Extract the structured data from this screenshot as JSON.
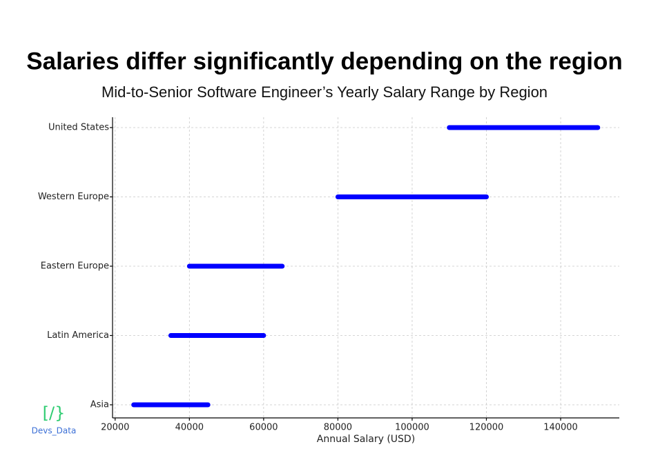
{
  "chart_data": {
    "type": "range",
    "title": "Salaries differ significantly depending on the region",
    "subtitle": "Mid-to-Senior Software Engineer’s Yearly Salary Range by Region",
    "xlabel": "Annual Salary (USD)",
    "categories": [
      "United States",
      "Western Europe",
      "Eastern Europe",
      "Latin America",
      "Asia"
    ],
    "low": [
      110000,
      80000,
      40000,
      35000,
      25000
    ],
    "high": [
      150000,
      120000,
      65000,
      60000,
      45000
    ],
    "color": "#0000ff",
    "xlim": [
      19300,
      155800
    ],
    "xticks": [
      20000,
      40000,
      60000,
      80000,
      100000,
      120000,
      140000
    ],
    "grid": true
  },
  "logo": {
    "icon": "[/}",
    "text": "Devs_Data"
  }
}
